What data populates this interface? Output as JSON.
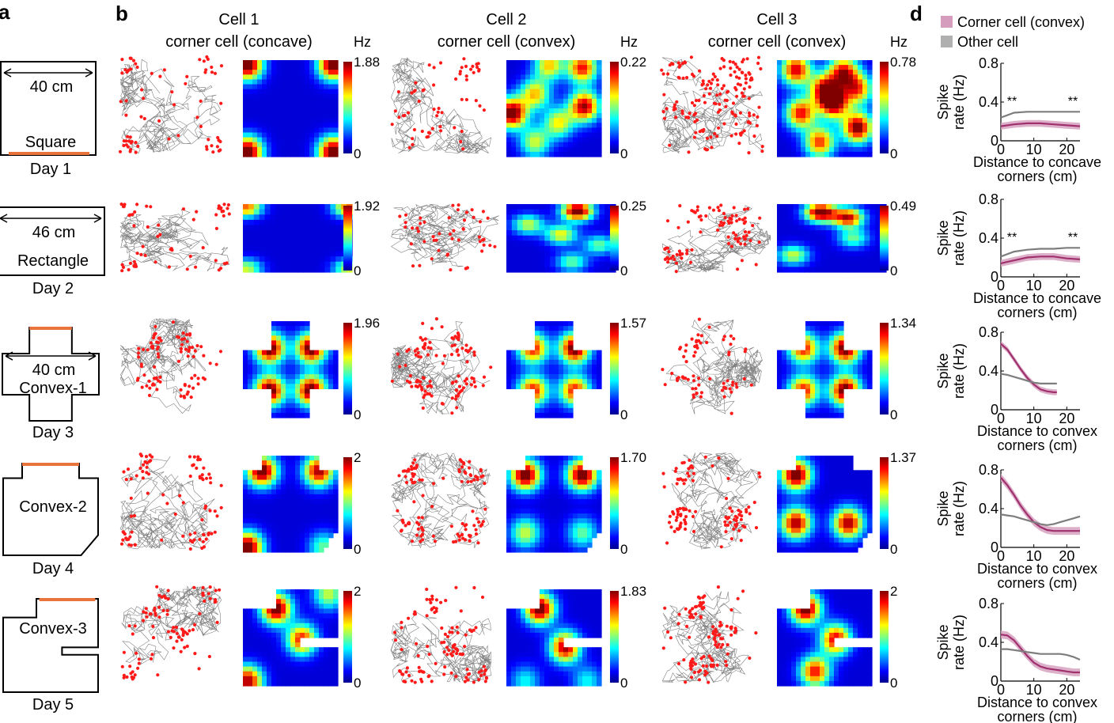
{
  "panel_letters": {
    "a": "a",
    "b": "b",
    "d": "d"
  },
  "colors": {
    "trajectory": "#808080",
    "spikes": "#ff1a1a",
    "corner_cell": "#a0306e",
    "corner_band": "#d59cbd",
    "other_cell": "#7d7d7d",
    "highlight_wall": "#e8743b"
  },
  "legend": {
    "corner_cell": "Corner cell (convex)",
    "other_cell": "Other cell"
  },
  "columns": [
    {
      "title": "Cell 1",
      "subtitle": "corner cell (concave)",
      "unit": "Hz"
    },
    {
      "title": "Cell 2",
      "subtitle": "corner cell (convex)",
      "unit": "Hz"
    },
    {
      "title": "Cell 3",
      "subtitle": "corner cell (convex)",
      "unit": "Hz"
    }
  ],
  "environments": [
    {
      "label": "Square",
      "dimension": "40 cm",
      "day": "Day 1",
      "colorbar_max": [
        "1.88",
        "0.22",
        "0.78"
      ],
      "colorbar_min": "0"
    },
    {
      "label": "Rectangle",
      "dimension": "46 cm",
      "day": "Day 2",
      "colorbar_max": [
        "1.92",
        "0.25",
        "0.49"
      ],
      "colorbar_min": "0"
    },
    {
      "label": "Convex-1",
      "dimension": "40 cm",
      "day": "Day 3",
      "colorbar_max": [
        "1.96",
        "1.57",
        "1.34"
      ],
      "colorbar_min": "0"
    },
    {
      "label": "Convex-2",
      "dimension": "",
      "day": "Day 4",
      "colorbar_max": [
        "2",
        "1.70",
        "1.37"
      ],
      "colorbar_min": "0"
    },
    {
      "label": "Convex-3",
      "dimension": "",
      "day": "Day 5",
      "colorbar_max": [
        "2",
        "1.83",
        "2"
      ],
      "colorbar_min": "0"
    }
  ],
  "chart_data": [
    {
      "type": "line",
      "xlabel": "Distance to concave corners (cm)",
      "ylabel": "Spike rate (Hz)",
      "xticks": [
        "0",
        "10",
        "20"
      ],
      "yticks": [
        "0",
        "0.4",
        "0.8"
      ],
      "xlim": [
        0,
        24
      ],
      "ylim": [
        0,
        0.8
      ],
      "annotations": [
        "**",
        "**"
      ],
      "series": [
        {
          "name": "Corner cell (convex)",
          "x": [
            0,
            4,
            8,
            12,
            16,
            20,
            24
          ],
          "y": [
            0.15,
            0.17,
            0.18,
            0.18,
            0.17,
            0.16,
            0.15
          ],
          "band": 0.035
        },
        {
          "name": "Other cell",
          "x": [
            0,
            4,
            8,
            12,
            16,
            20,
            24
          ],
          "y": [
            0.24,
            0.29,
            0.3,
            0.3,
            0.3,
            0.3,
            0.3
          ],
          "band": 0.01
        }
      ]
    },
    {
      "type": "line",
      "xlabel": "Distance to concave corners (cm)",
      "ylabel": "Spike rate (Hz)",
      "xticks": [
        "0",
        "10",
        "20"
      ],
      "yticks": [
        "0",
        "0.4",
        "0.8"
      ],
      "xlim": [
        0,
        24
      ],
      "ylim": [
        0,
        0.8
      ],
      "annotations": [
        "**",
        "**"
      ],
      "series": [
        {
          "name": "Corner cell (convex)",
          "x": [
            0,
            4,
            8,
            12,
            16,
            20,
            24
          ],
          "y": [
            0.14,
            0.17,
            0.2,
            0.21,
            0.21,
            0.19,
            0.18
          ],
          "band": 0.035
        },
        {
          "name": "Other cell",
          "x": [
            0,
            4,
            8,
            12,
            16,
            20,
            24
          ],
          "y": [
            0.21,
            0.26,
            0.28,
            0.29,
            0.29,
            0.3,
            0.3
          ],
          "band": 0.01
        }
      ]
    },
    {
      "type": "line",
      "xlabel": "Distance to convex corners (cm)",
      "ylabel": "Spike rate (Hz)",
      "xticks": [
        "0",
        "10",
        "20"
      ],
      "yticks": [
        "0",
        "0.4",
        "0.8"
      ],
      "xlim": [
        0,
        24
      ],
      "ylim": [
        0,
        0.8
      ],
      "annotations": [],
      "series": [
        {
          "name": "Corner cell (convex)",
          "x": [
            0,
            2,
            4,
            6,
            8,
            10,
            12,
            14,
            16,
            17
          ],
          "y": [
            0.68,
            0.62,
            0.52,
            0.42,
            0.33,
            0.26,
            0.21,
            0.19,
            0.18,
            0.18
          ],
          "band": 0.03
        },
        {
          "name": "Other cell",
          "x": [
            0,
            2,
            4,
            6,
            8,
            10,
            12,
            14,
            16,
            17
          ],
          "y": [
            0.37,
            0.36,
            0.34,
            0.32,
            0.3,
            0.28,
            0.27,
            0.27,
            0.27,
            0.27
          ],
          "band": 0.01
        }
      ]
    },
    {
      "type": "line",
      "xlabel": "Distance to convex corners (cm)",
      "ylabel": "Spike rate (Hz)",
      "xticks": [
        "0",
        "10",
        "20"
      ],
      "yticks": [
        "0",
        "0.4",
        "0.8"
      ],
      "xlim": [
        0,
        24
      ],
      "ylim": [
        0,
        0.8
      ],
      "annotations": [],
      "series": [
        {
          "name": "Corner cell (convex)",
          "x": [
            0,
            2,
            4,
            6,
            8,
            10,
            12,
            14,
            16,
            18,
            20,
            22,
            24
          ],
          "y": [
            0.72,
            0.64,
            0.54,
            0.43,
            0.34,
            0.26,
            0.21,
            0.18,
            0.17,
            0.17,
            0.17,
            0.17,
            0.17
          ],
          "band": 0.04
        },
        {
          "name": "Other cell",
          "x": [
            0,
            2,
            4,
            6,
            8,
            10,
            12,
            14,
            16,
            18,
            20,
            22,
            24
          ],
          "y": [
            0.34,
            0.33,
            0.32,
            0.3,
            0.28,
            0.26,
            0.24,
            0.23,
            0.24,
            0.26,
            0.28,
            0.3,
            0.32
          ],
          "band": 0.01
        }
      ]
    },
    {
      "type": "line",
      "xlabel": "Distance to convex corners (cm)",
      "ylabel": "Spike rate (Hz)",
      "xticks": [
        "0",
        "10",
        "20"
      ],
      "yticks": [
        "0",
        "0.4",
        "0.8"
      ],
      "xlim": [
        0,
        24
      ],
      "ylim": [
        0,
        0.8
      ],
      "annotations": [],
      "series": [
        {
          "name": "Corner cell (convex)",
          "x": [
            0,
            2,
            4,
            6,
            8,
            10,
            12,
            14,
            16,
            18,
            20,
            22,
            24
          ],
          "y": [
            0.48,
            0.47,
            0.42,
            0.34,
            0.26,
            0.19,
            0.15,
            0.13,
            0.12,
            0.11,
            0.1,
            0.09,
            0.09
          ],
          "band": 0.04
        },
        {
          "name": "Other cell",
          "x": [
            0,
            2,
            4,
            6,
            8,
            10,
            12,
            14,
            16,
            18,
            20,
            22,
            24
          ],
          "y": [
            0.33,
            0.33,
            0.32,
            0.31,
            0.3,
            0.29,
            0.28,
            0.28,
            0.28,
            0.28,
            0.27,
            0.25,
            0.22
          ],
          "band": 0.01
        }
      ]
    }
  ]
}
